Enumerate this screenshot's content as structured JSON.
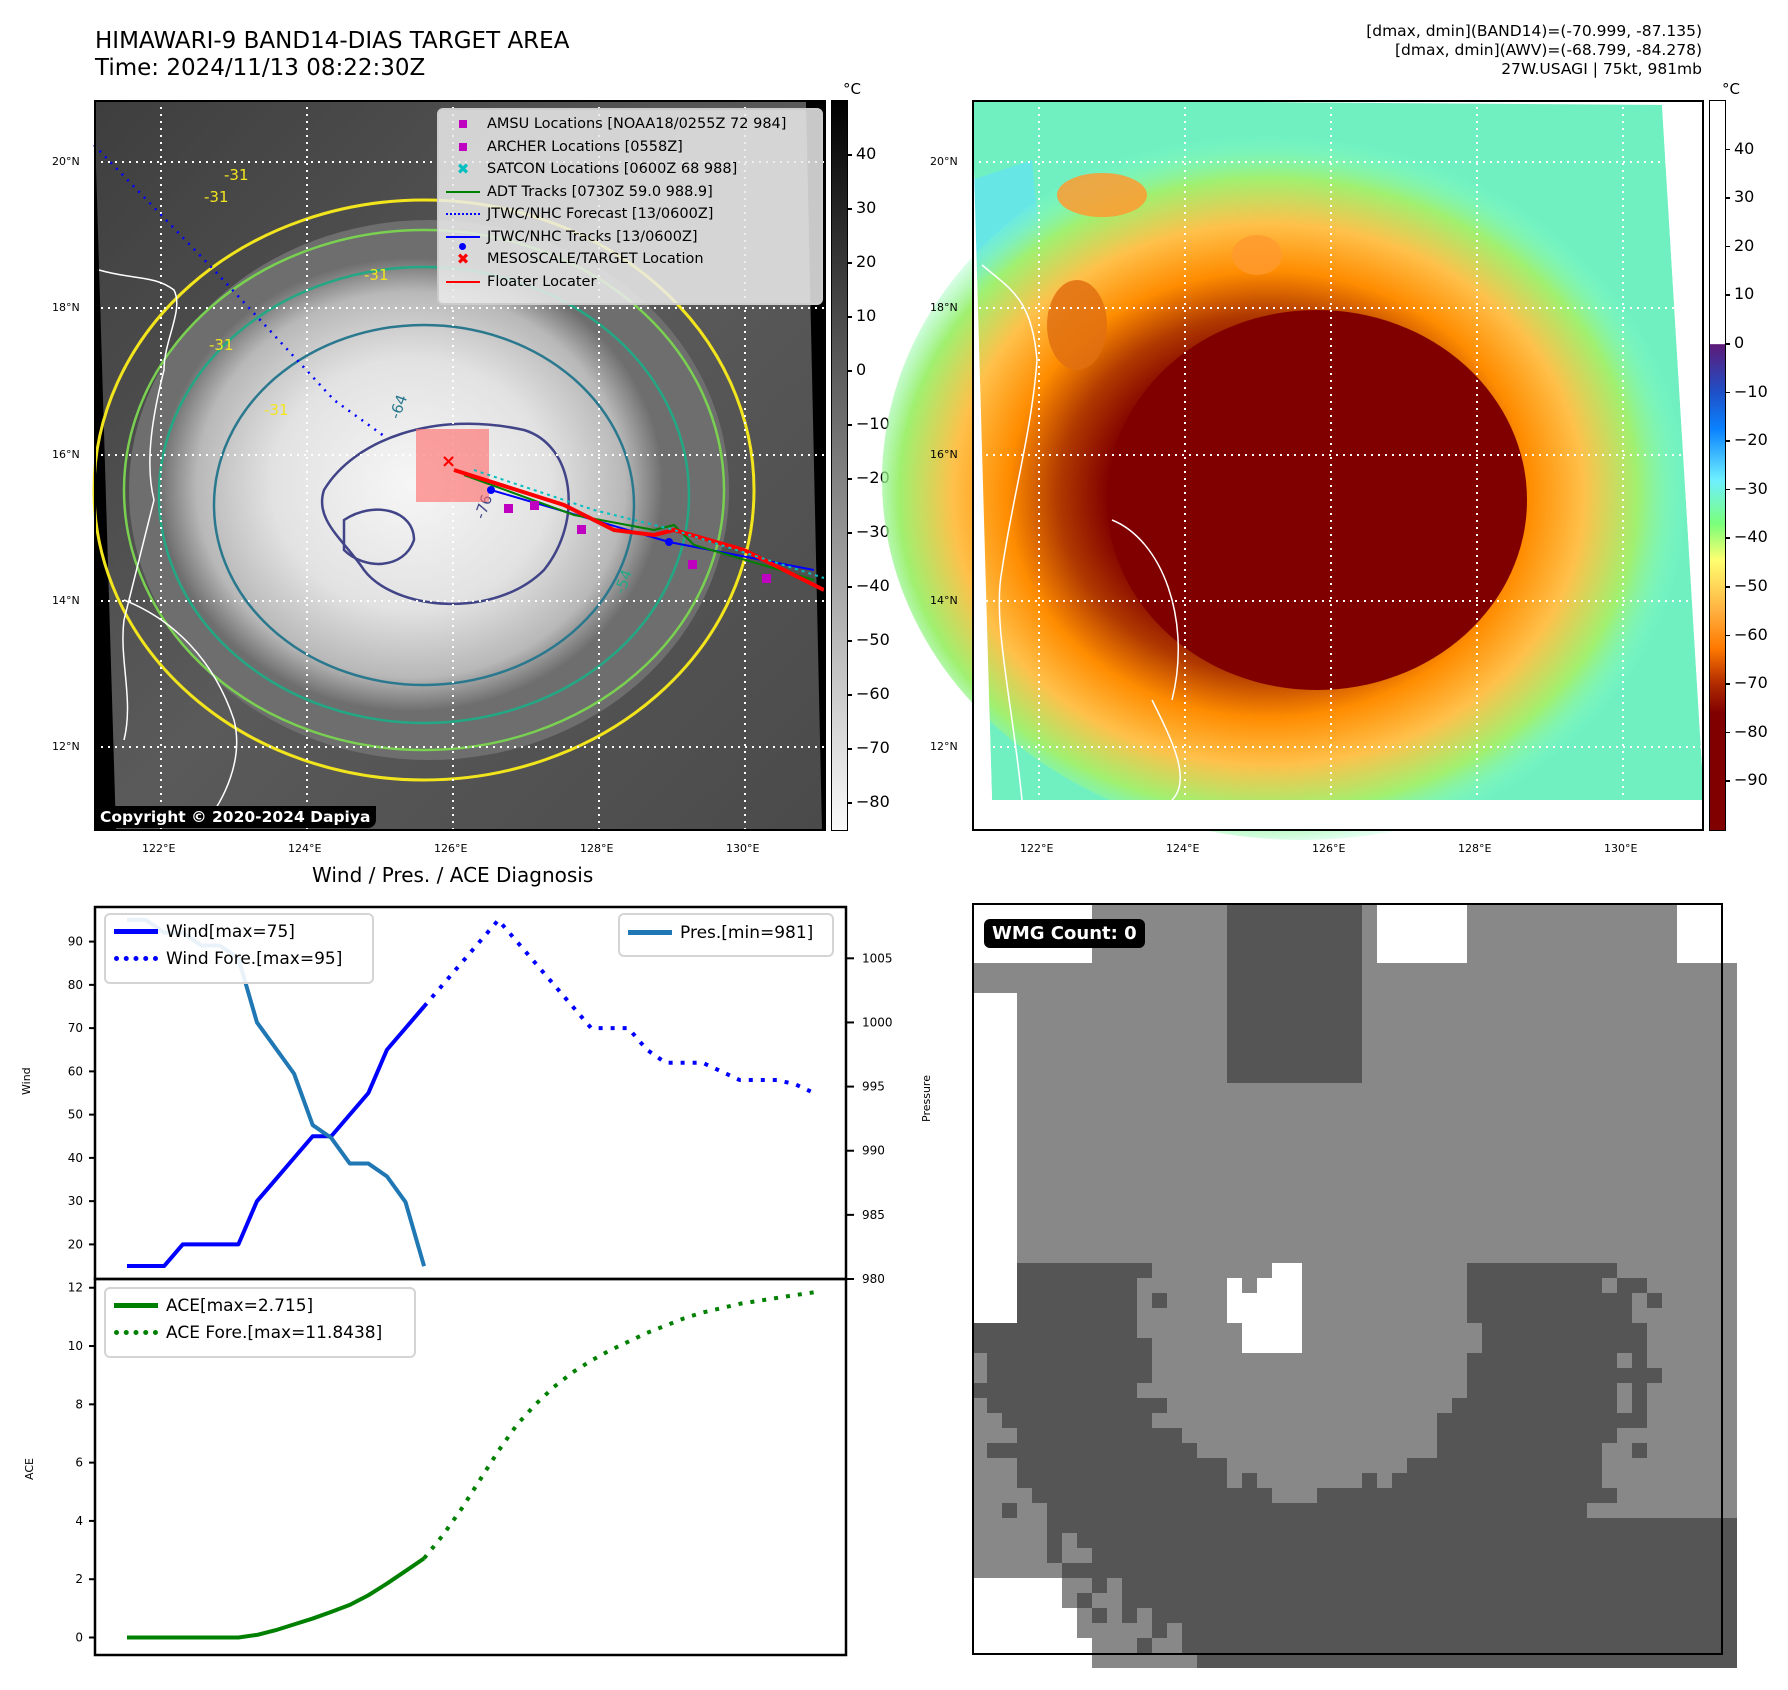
{
  "header": {
    "title_line1": "HIMAWARI-9 BAND14-DIAS TARGET AREA",
    "title_line2": "Time: 2024/11/13 08:22:30Z",
    "info_line1": "[dmax, dmin](BAND14)=(-70.999, -87.135)",
    "info_line2": "[dmax, dmin](AWV)=(-68.799, -84.278)",
    "info_line3": "27W.USAGI | 75kt, 981mb"
  },
  "map_left": {
    "lat_ticks": [
      "20°N",
      "18°N",
      "16°N",
      "14°N",
      "12°N"
    ],
    "lon_ticks": [
      "122°E",
      "124°E",
      "126°E",
      "128°E",
      "130°E"
    ],
    "colorbar_unit": "°C",
    "colorbar_ticks": [
      "40",
      "30",
      "20",
      "10",
      "0",
      "−10",
      "−20",
      "−30",
      "−40",
      "−50",
      "−60",
      "−70",
      "−80"
    ],
    "colorbar_range": [
      -85,
      50
    ],
    "contour_labels": [
      "-31",
      "-31",
      "-31",
      "-31",
      "-31",
      "-64",
      "-54",
      "-76"
    ],
    "copyright": "Copyright © 2020-2024 Dapiya",
    "legend": [
      {
        "symbol": "square",
        "color": "#c000c0",
        "label": "AMSU Locations [NOAA18/0255Z 72 984]"
      },
      {
        "symbol": "square",
        "color": "#c000c0",
        "label": "ARCHER Locations [0558Z]"
      },
      {
        "symbol": "x",
        "color": "#00bfbf",
        "label": "SATCON Locations [0600Z 68 988]"
      },
      {
        "symbol": "line",
        "color": "#008000",
        "label": "ADT Tracks [0730Z 59.0 988.9]"
      },
      {
        "symbol": "dotted",
        "color": "#0000ff",
        "label": "JTWC/NHC Forecast [13/0600Z]"
      },
      {
        "symbol": "line-dot",
        "color": "#0000ff",
        "label": "JTWC/NHC Tracks [13/0600Z]"
      },
      {
        "symbol": "x",
        "color": "#ff0000",
        "label": "MESOSCALE/TARGET Location"
      },
      {
        "symbol": "line",
        "color": "#ff0000",
        "label": "Floater Locater"
      }
    ]
  },
  "map_right": {
    "lat_ticks": [
      "20°N",
      "18°N",
      "16°N",
      "14°N",
      "12°N"
    ],
    "lon_ticks": [
      "122°E",
      "124°E",
      "126°E",
      "128°E",
      "130°E"
    ],
    "colorbar_unit": "°C",
    "colorbar_ticks": [
      "40",
      "30",
      "20",
      "10",
      "0",
      "−10",
      "−20",
      "−30",
      "−40",
      "−50",
      "−60",
      "−70",
      "−80",
      "−90"
    ],
    "colorbar_range": [
      -100,
      50
    ]
  },
  "wmg": {
    "badge": "WMG Count: 0"
  },
  "chart_data": [
    {
      "type": "line",
      "title": "Wind / Pres. / ACE Diagnosis",
      "ylabel": "Wind",
      "ylabel_right": "Pressure",
      "ylim": [
        12,
        98
      ],
      "ylim_right": [
        980,
        1009
      ],
      "yticks": [
        20,
        30,
        40,
        50,
        60,
        70,
        80,
        90
      ],
      "yticks_right": [
        980,
        985,
        990,
        995,
        1000,
        1005
      ],
      "x": [
        0,
        1,
        2,
        3,
        4,
        5,
        6,
        7,
        8,
        9,
        10,
        11,
        12,
        13,
        14,
        15,
        16,
        17,
        18,
        19,
        20,
        21,
        22,
        23,
        24,
        25,
        26,
        27,
        28,
        29,
        30,
        31,
        32,
        33,
        34,
        35,
        36,
        37
      ],
      "series": [
        {
          "name": "Wind[max=75]",
          "style": "solid",
          "color": "#0000ff",
          "axis": "left",
          "x": [
            0,
            1,
            2,
            3,
            4,
            5,
            6,
            7,
            8,
            9,
            10,
            11,
            12,
            13,
            14,
            15,
            16
          ],
          "values": [
            15,
            15,
            15,
            20,
            20,
            20,
            20,
            30,
            35,
            40,
            45,
            45,
            50,
            55,
            65,
            70,
            75
          ]
        },
        {
          "name": "Wind Fore.[max=95]",
          "style": "dotted",
          "color": "#0000ff",
          "axis": "left",
          "x": [
            16,
            17,
            18,
            19,
            20,
            21,
            22,
            23,
            24,
            25,
            26,
            27,
            28,
            29,
            30,
            31,
            32,
            33,
            34,
            35,
            36,
            37
          ],
          "values": [
            75,
            80,
            85,
            90,
            95,
            90,
            85,
            80,
            75,
            70,
            70,
            70,
            65,
            62,
            62,
            62,
            60,
            58,
            58,
            58,
            57,
            55
          ]
        },
        {
          "name": "Pres.[min=981]",
          "style": "solid",
          "color": "#1f77b4",
          "axis": "right",
          "x": [
            0,
            1,
            2,
            3,
            4,
            5,
            6,
            7,
            8,
            9,
            10,
            11,
            12,
            13,
            14,
            15,
            16
          ],
          "values": [
            1008,
            1008,
            1007,
            1007,
            1006,
            1006,
            1005,
            1000,
            998,
            996,
            992,
            991,
            989,
            989,
            988,
            986,
            981
          ]
        }
      ],
      "legend": [
        {
          "label": "Wind[max=75]",
          "style": "solid",
          "color": "#0000ff",
          "placement": "top-left"
        },
        {
          "label": "Wind Fore.[max=95]",
          "style": "dotted",
          "color": "#0000ff",
          "placement": "top-left"
        },
        {
          "label": "Pres.[min=981]",
          "style": "solid",
          "color": "#1f77b4",
          "placement": "top-right"
        }
      ]
    },
    {
      "type": "line",
      "title": "",
      "ylabel": "ACE",
      "ylim": [
        -0.6,
        12.3
      ],
      "yticks": [
        0,
        2,
        4,
        6,
        8,
        10,
        12
      ],
      "series": [
        {
          "name": "ACE[max=2.715]",
          "style": "solid",
          "color": "#008000",
          "x": [
            0,
            1,
            2,
            3,
            4,
            5,
            6,
            7,
            8,
            9,
            10,
            11,
            12,
            13,
            14,
            15,
            16
          ],
          "values": [
            0,
            0,
            0,
            0,
            0,
            0,
            0,
            0.09,
            0.25,
            0.45,
            0.65,
            0.88,
            1.12,
            1.45,
            1.85,
            2.28,
            2.715
          ]
        },
        {
          "name": "ACE Fore.[max=11.8438]",
          "style": "dotted",
          "color": "#008000",
          "x": [
            16,
            17,
            18,
            19,
            20,
            21,
            22,
            23,
            24,
            25,
            26,
            27,
            28,
            29,
            30,
            31,
            32,
            33,
            34,
            35,
            36,
            37
          ],
          "values": [
            2.715,
            3.5,
            4.4,
            5.4,
            6.4,
            7.3,
            8.0,
            8.6,
            9.1,
            9.5,
            9.85,
            10.15,
            10.45,
            10.7,
            10.95,
            11.15,
            11.3,
            11.45,
            11.55,
            11.65,
            11.75,
            11.8438
          ]
        }
      ],
      "legend": [
        {
          "label": "ACE[max=2.715]",
          "style": "solid",
          "color": "#008000",
          "placement": "top-left"
        },
        {
          "label": "ACE Fore.[max=11.8438]",
          "style": "dotted",
          "color": "#008000",
          "placement": "top-left"
        }
      ]
    }
  ]
}
